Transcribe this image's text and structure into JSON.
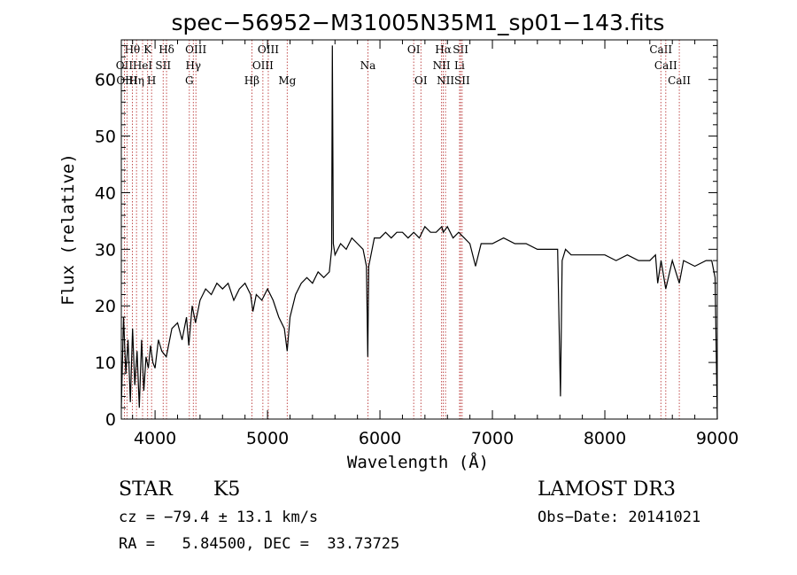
{
  "chart_data": {
    "type": "line",
    "title": "spec−56952−M31005N35M1_sp01−143.fits",
    "xlabel": "Wavelength (Å)",
    "ylabel": "Flux (relative)",
    "xlim": [
      3700,
      9000
    ],
    "ylim": [
      0,
      67
    ],
    "xticks": [
      4000,
      5000,
      6000,
      7000,
      8000,
      9000
    ],
    "yticks": [
      0,
      10,
      20,
      30,
      40,
      50,
      60
    ],
    "series": [
      {
        "name": "spectrum",
        "x": [
          3700,
          3720,
          3740,
          3760,
          3780,
          3800,
          3820,
          3840,
          3860,
          3880,
          3900,
          3920,
          3940,
          3960,
          3980,
          4000,
          4030,
          4060,
          4100,
          4150,
          4200,
          4240,
          4280,
          4300,
          4330,
          4360,
          4400,
          4450,
          4500,
          4550,
          4600,
          4650,
          4700,
          4750,
          4800,
          4850,
          4870,
          4900,
          4950,
          5000,
          5050,
          5100,
          5150,
          5175,
          5200,
          5250,
          5300,
          5350,
          5400,
          5450,
          5500,
          5550,
          5570,
          5577,
          5585,
          5600,
          5650,
          5700,
          5750,
          5800,
          5850,
          5880,
          5892,
          5900,
          5950,
          6000,
          6050,
          6100,
          6150,
          6200,
          6250,
          6300,
          6350,
          6400,
          6450,
          6500,
          6550,
          6563,
          6600,
          6650,
          6700,
          6750,
          6800,
          6850,
          6900,
          7000,
          7100,
          7200,
          7300,
          7400,
          7500,
          7580,
          7605,
          7620,
          7650,
          7700,
          7800,
          7900,
          8000,
          8100,
          8200,
          8300,
          8400,
          8450,
          8470,
          8500,
          8542,
          8600,
          8662,
          8700,
          8800,
          8900,
          8950,
          8980,
          9000
        ],
        "y": [
          2,
          18,
          8,
          14,
          3,
          16,
          6,
          12,
          2,
          14,
          5,
          11,
          9,
          13,
          10,
          9,
          14,
          12,
          11,
          16,
          17,
          14,
          18,
          13,
          20,
          17,
          21,
          23,
          22,
          24,
          23,
          24,
          21,
          23,
          24,
          22,
          19,
          22,
          21,
          23,
          21,
          18,
          16,
          12,
          18,
          22,
          24,
          25,
          24,
          26,
          25,
          26,
          30,
          66,
          31,
          29,
          31,
          30,
          32,
          31,
          30,
          27,
          11,
          27,
          32,
          32,
          33,
          32,
          33,
          33,
          32,
          33,
          32,
          34,
          33,
          33,
          34,
          33,
          34,
          32,
          33,
          32,
          31,
          27,
          31,
          31,
          32,
          31,
          31,
          30,
          30,
          30,
          4,
          28,
          30,
          29,
          29,
          29,
          29,
          28,
          29,
          28,
          28,
          29,
          24,
          28,
          23,
          28,
          24,
          28,
          27,
          28,
          28,
          25,
          0
        ]
      }
    ],
    "line_markers": [
      {
        "label": "Hθ",
        "x": 3798,
        "row": 1
      },
      {
        "label": "K",
        "x": 3934,
        "row": 1
      },
      {
        "label": "Hδ",
        "x": 4102,
        "row": 1
      },
      {
        "label": "OIII",
        "x": 4363,
        "row": 1
      },
      {
        "label": "OIII",
        "x": 5007,
        "row": 1
      },
      {
        "label": "OI",
        "x": 6300,
        "row": 1
      },
      {
        "label": "Hα",
        "x": 6563,
        "row": 1
      },
      {
        "label": "SII",
        "x": 6717,
        "row": 1
      },
      {
        "label": "CaII",
        "x": 8498,
        "row": 1
      },
      {
        "label": "OII",
        "x": 3727,
        "row": 2
      },
      {
        "label": "HeI",
        "x": 3889,
        "row": 2
      },
      {
        "label": "SII",
        "x": 4072,
        "row": 2
      },
      {
        "label": "Hγ",
        "x": 4340,
        "row": 2
      },
      {
        "label": "OIII",
        "x": 4959,
        "row": 2
      },
      {
        "label": "Na",
        "x": 5893,
        "row": 2
      },
      {
        "label": "NII",
        "x": 6548,
        "row": 2
      },
      {
        "label": "Li",
        "x": 6708,
        "row": 2
      },
      {
        "label": "CaII",
        "x": 8542,
        "row": 2
      },
      {
        "label": "OIII",
        "x": 3750,
        "row": 3
      },
      {
        "label": "Hη",
        "x": 3835,
        "row": 3
      },
      {
        "label": "H",
        "x": 3969,
        "row": 3
      },
      {
        "label": "G",
        "x": 4305,
        "row": 3
      },
      {
        "label": "Hβ",
        "x": 4861,
        "row": 3
      },
      {
        "label": "Mg",
        "x": 5175,
        "row": 3
      },
      {
        "label": "OI",
        "x": 6364,
        "row": 3
      },
      {
        "label": "NII",
        "x": 6583,
        "row": 3
      },
      {
        "label": "SII",
        "x": 6731,
        "row": 3
      },
      {
        "label": "CaII",
        "x": 8662,
        "row": 3
      }
    ],
    "colors": {
      "spectrum": "#000000",
      "markers": "#b22222",
      "axes": "#000000"
    }
  },
  "info": {
    "class_label": "STAR",
    "subclass": "K5",
    "survey": "LAMOST DR3",
    "cz": "cz = −79.4 ± 13.1 km/s",
    "obs_date": "Obs−Date: 20141021",
    "coords": "RA =   5.84500, DEC =  33.73725"
  }
}
